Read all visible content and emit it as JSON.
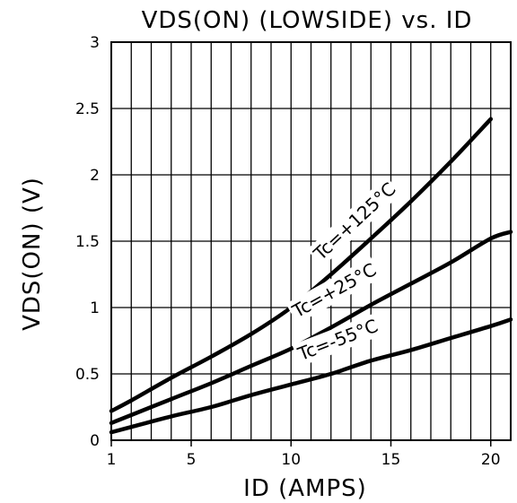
{
  "chart_data": {
    "type": "line",
    "title": "VDS(ON) (LOWSIDE) vs. ID",
    "xlabel": "ID (AMPS)",
    "ylabel": "VDS(ON) (V)",
    "xlim": [
      1,
      21
    ],
    "ylim": [
      0,
      3
    ],
    "x_ticks": [
      1,
      5,
      10,
      15,
      20
    ],
    "x_tick_labels": [
      "1",
      "5",
      "10",
      "15",
      "20"
    ],
    "y_ticks": [
      0,
      0.5,
      1,
      1.5,
      2,
      2.5,
      3
    ],
    "y_tick_labels": [
      "0",
      "0.5",
      "1",
      "1.5",
      "2",
      "2.5",
      "3"
    ],
    "grid": true,
    "legend": "none",
    "series": [
      {
        "name": "Tc=+125°C",
        "x": [
          1,
          2,
          4,
          6,
          8,
          10,
          12,
          14,
          16,
          18,
          20
        ],
        "y": [
          0.22,
          0.3,
          0.47,
          0.63,
          0.8,
          1.0,
          1.25,
          1.52,
          1.8,
          2.1,
          2.42
        ]
      },
      {
        "name": "Tc=+25°C",
        "x": [
          1,
          2,
          4,
          6,
          8,
          10,
          12,
          14,
          16,
          18,
          20,
          21
        ],
        "y": [
          0.13,
          0.19,
          0.31,
          0.43,
          0.56,
          0.69,
          0.85,
          1.02,
          1.18,
          1.34,
          1.52,
          1.57
        ]
      },
      {
        "name": "Tc=-55°C",
        "x": [
          1,
          2,
          4,
          6,
          8,
          10,
          12,
          14,
          16,
          18,
          20,
          21
        ],
        "y": [
          0.06,
          0.1,
          0.18,
          0.25,
          0.34,
          0.42,
          0.5,
          0.6,
          0.68,
          0.77,
          0.86,
          0.91
        ]
      }
    ],
    "annotations": [
      "Tc=+125°C",
      "Tc=+25°C",
      "Tc=-55°C"
    ]
  }
}
